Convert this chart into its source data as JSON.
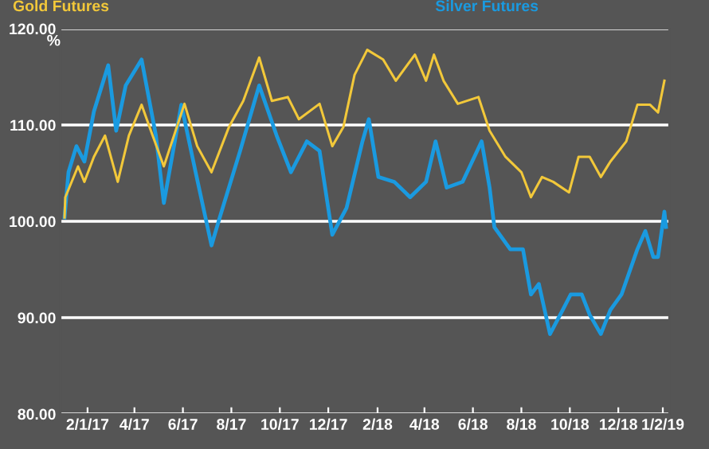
{
  "chart_data": {
    "type": "line",
    "ylabel": "%",
    "ylim": [
      80,
      120
    ],
    "yticks": [
      {
        "value": 80,
        "label": "80.00"
      },
      {
        "value": 90,
        "label": "90.00"
      },
      {
        "value": 100,
        "label": "100.00"
      },
      {
        "value": 110,
        "label": "110.00"
      },
      {
        "value": 120,
        "label": "120.00"
      }
    ],
    "xlim": [
      "2016-12-29",
      "2019-02-03"
    ],
    "xticks": [
      {
        "value": "2017-02-01",
        "label": "2/1/17"
      },
      {
        "value": "2017-04-01",
        "label": "4/17"
      },
      {
        "value": "2017-06-01",
        "label": "6/17"
      },
      {
        "value": "2017-08-01",
        "label": "8/17"
      },
      {
        "value": "2017-10-01",
        "label": "10/17"
      },
      {
        "value": "2017-12-01",
        "label": "12/17"
      },
      {
        "value": "2018-02-01",
        "label": "2/18"
      },
      {
        "value": "2018-04-01",
        "label": "4/18"
      },
      {
        "value": "2018-06-01",
        "label": "6/18"
      },
      {
        "value": "2018-08-01",
        "label": "8/18"
      },
      {
        "value": "2018-10-01",
        "label": "10/18"
      },
      {
        "value": "2018-12-01",
        "label": "12/18"
      },
      {
        "value": "2019-01-26",
        "label": "1/2/19"
      }
    ],
    "grid": "y",
    "legend": "top",
    "marker": "none",
    "line_style": "solid",
    "series": [
      {
        "name": "Gold Futures",
        "color": "#f2c83a",
        "x": [
          "2017-01-03",
          "2017-01-04",
          "2017-01-20",
          "2017-01-28",
          "2017-02-09",
          "2017-02-23",
          "2017-03-11",
          "2017-03-25",
          "2017-04-10",
          "2017-04-20",
          "2017-05-08",
          "2017-06-03",
          "2017-06-19",
          "2017-07-07",
          "2017-07-29",
          "2017-08-16",
          "2017-09-05",
          "2017-09-21",
          "2017-10-11",
          "2017-10-25",
          "2017-11-20",
          "2017-12-06",
          "2017-12-20",
          "2018-01-03",
          "2018-01-19",
          "2018-02-08",
          "2018-02-24",
          "2018-03-20",
          "2018-04-03",
          "2018-04-13",
          "2018-04-25",
          "2018-05-13",
          "2018-06-08",
          "2018-06-22",
          "2018-07-12",
          "2018-08-01",
          "2018-08-13",
          "2018-08-27",
          "2018-09-10",
          "2018-09-30",
          "2018-10-12",
          "2018-10-26",
          "2018-11-09",
          "2018-11-21",
          "2018-12-11",
          "2018-12-25",
          "2019-01-10",
          "2019-01-20",
          "2019-01-28"
        ],
        "values": [
          100.4,
          102.5,
          105.7,
          104.1,
          106.7,
          108.9,
          104.1,
          108.9,
          112.1,
          109.8,
          105.7,
          112.2,
          107.8,
          105.1,
          109.8,
          112.5,
          117.0,
          112.5,
          112.9,
          110.6,
          112.2,
          107.8,
          109.8,
          115.2,
          117.8,
          116.8,
          114.6,
          117.3,
          114.6,
          117.3,
          114.6,
          112.2,
          112.9,
          109.4,
          106.7,
          105.1,
          102.5,
          104.6,
          104.1,
          103.0,
          106.7,
          106.7,
          104.6,
          106.2,
          108.3,
          112.1,
          112.1,
          111.3,
          114.6
        ]
      },
      {
        "name": "Silver Futures",
        "color": "#1a9ae0",
        "x": [
          "2017-01-03",
          "2017-01-08",
          "2017-01-18",
          "2017-01-28",
          "2017-02-09",
          "2017-02-27",
          "2017-03-09",
          "2017-03-21",
          "2017-04-10",
          "2017-04-28",
          "2017-05-08",
          "2017-05-30",
          "2017-06-17",
          "2017-07-07",
          "2017-07-17",
          "2017-08-12",
          "2017-09-05",
          "2017-09-27",
          "2017-10-15",
          "2017-11-04",
          "2017-11-20",
          "2017-12-06",
          "2017-12-24",
          "2018-01-13",
          "2018-01-21",
          "2018-02-02",
          "2018-02-22",
          "2018-03-14",
          "2018-04-03",
          "2018-04-15",
          "2018-04-29",
          "2018-05-19",
          "2018-06-12",
          "2018-06-22",
          "2018-06-28",
          "2018-07-18",
          "2018-08-03",
          "2018-08-13",
          "2018-08-23",
          "2018-09-06",
          "2018-09-22",
          "2018-10-02",
          "2018-10-16",
          "2018-10-26",
          "2018-11-09",
          "2018-11-21",
          "2018-12-05",
          "2018-12-25",
          "2019-01-04",
          "2019-01-14",
          "2019-01-20",
          "2019-01-28",
          "2019-01-30"
        ],
        "values": [
          100.4,
          105.1,
          107.8,
          106.2,
          111.4,
          116.2,
          109.4,
          114.1,
          116.8,
          108.9,
          101.9,
          112.1,
          105.1,
          97.5,
          100.3,
          107.3,
          114.1,
          108.9,
          105.1,
          108.3,
          107.3,
          98.6,
          101.4,
          108.3,
          110.6,
          104.6,
          104.1,
          102.5,
          104.1,
          108.3,
          103.5,
          104.1,
          108.3,
          103.5,
          99.4,
          97.1,
          97.1,
          92.4,
          93.5,
          88.3,
          90.8,
          92.4,
          92.4,
          90.3,
          88.3,
          90.8,
          92.4,
          97.1,
          99.0,
          96.3,
          96.3,
          101.0,
          99.4
        ]
      }
    ]
  }
}
